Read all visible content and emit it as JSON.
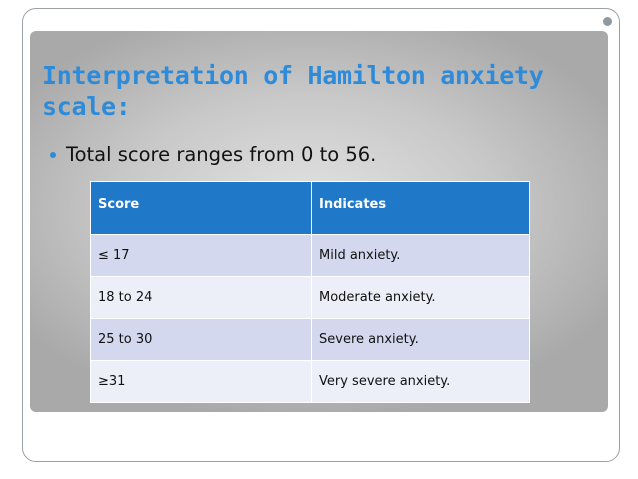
{
  "slide": {
    "title": "Interpretation of Hamilton anxiety scale:",
    "bullet": "Total score ranges from 0 to 56."
  },
  "table": {
    "headers": [
      "Score",
      "Indicates"
    ],
    "rows": [
      [
        "≤ 17",
        "Mild anxiety."
      ],
      [
        "18 to 24",
        "Moderate anxiety."
      ],
      [
        "25 to 30",
        "Severe anxiety."
      ],
      [
        "≥31",
        "Very severe anxiety."
      ]
    ]
  },
  "colors": {
    "title": "#2e8bd9",
    "header_bg": "#1f78c8",
    "row_odd": "#d4d8ee",
    "row_even": "#eceef8"
  }
}
